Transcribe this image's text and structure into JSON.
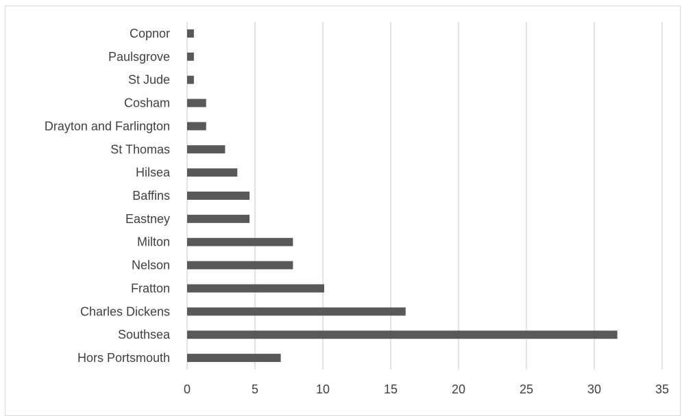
{
  "caption": "",
  "chart_data": {
    "type": "bar",
    "orientation": "horizontal",
    "title": "",
    "xlabel": "",
    "ylabel": "",
    "categories": [
      "Hors Portsmouth",
      "Southsea",
      "Charles Dickens",
      "Fratton",
      "Nelson",
      "Milton",
      "Eastney",
      "Baffins",
      "Hilsea",
      "St Thomas",
      "Drayton and Farlington",
      "Cosham",
      "St Jude",
      "Paulsgrove",
      "Copnor"
    ],
    "values": [
      6.9,
      31.7,
      16.1,
      10.1,
      7.8,
      7.8,
      4.6,
      4.6,
      3.7,
      2.8,
      1.4,
      1.4,
      0.5,
      0.5,
      0.5
    ],
    "xlim": [
      0,
      35
    ],
    "xticks": [
      "0",
      "5",
      "10",
      "15",
      "20",
      "25",
      "30",
      "35"
    ],
    "grid": "vertical",
    "legend": "none",
    "colors": {
      "bar": "#595959",
      "grid": "#d9d9d9",
      "text": "#404040"
    }
  }
}
